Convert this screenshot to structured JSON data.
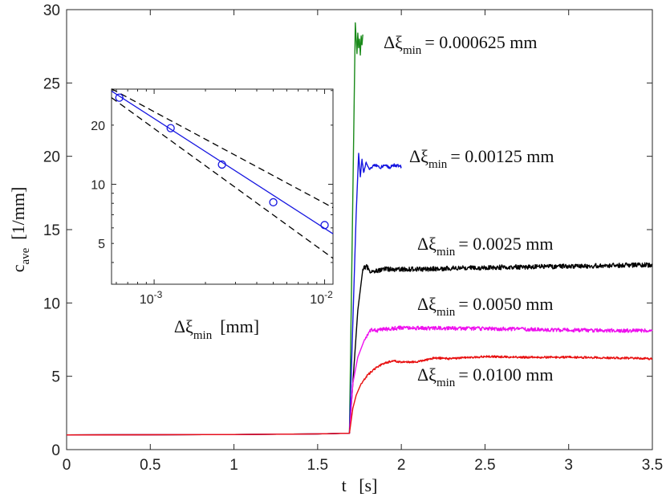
{
  "chart_data": [
    {
      "type": "line",
      "role": "main",
      "xlabel_var": "t",
      "xlabel_unit": "[s]",
      "ylabel_var": "c",
      "ylabel_sub": "ave",
      "ylabel_unit": "[1/mm]",
      "xlim": [
        0,
        3.5
      ],
      "ylim": [
        0,
        30
      ],
      "xticks": [
        0,
        0.5,
        1,
        1.5,
        2,
        2.5,
        3,
        3.5
      ],
      "xtick_labels": [
        "0",
        "0.5",
        "1",
        "1.5",
        "2",
        "2.5",
        "3",
        "3.5"
      ],
      "yticks": [
        0,
        5,
        10,
        15,
        20,
        25,
        30
      ],
      "ytick_labels": [
        "0",
        "5",
        "10",
        "15",
        "20",
        "25",
        "30"
      ],
      "series": [
        {
          "name": "Δξmin = 0.000625 mm",
          "label_prefix": "Δξ",
          "label_sub": "min",
          "label_value": "= 0.000625 mm",
          "color": "#1a8a1a",
          "points": [
            [
              0,
              1
            ],
            [
              1.0,
              1.03
            ],
            [
              1.5,
              1.07
            ],
            [
              1.69,
              1.12
            ],
            [
              1.725,
              29.1
            ],
            [
              1.735,
              27.0
            ],
            [
              1.74,
              28.4
            ],
            [
              1.745,
              27.4
            ],
            [
              1.75,
              28.0
            ],
            [
              1.755,
              26.9
            ],
            [
              1.76,
              28.2
            ],
            [
              1.765,
              27.6
            ],
            [
              1.77,
              28.3
            ]
          ],
          "noise": 0
        },
        {
          "name": "Δξmin = 0.00125 mm",
          "label_prefix": "Δξ",
          "label_sub": "min",
          "label_value": "= 0.00125 mm",
          "color": "#1515e0",
          "points": [
            [
              0,
              1
            ],
            [
              1.0,
              1.03
            ],
            [
              1.5,
              1.07
            ],
            [
              1.69,
              1.12
            ],
            [
              1.73,
              16.0
            ],
            [
              1.745,
              20.2
            ],
            [
              1.755,
              18.6
            ],
            [
              1.765,
              19.8
            ],
            [
              1.775,
              18.9
            ],
            [
              1.79,
              19.6
            ],
            [
              1.81,
              19.1
            ],
            [
              1.84,
              19.45
            ],
            [
              1.87,
              19.2
            ],
            [
              1.9,
              19.4
            ],
            [
              1.93,
              19.25
            ],
            [
              1.96,
              19.4
            ],
            [
              2.0,
              19.3
            ]
          ],
          "noise": 0.1
        },
        {
          "name": "Δξmin = 0.0025 mm",
          "label_prefix": "Δξ",
          "label_sub": "min",
          "label_value": "= 0.0025 mm",
          "color": "#000000",
          "points": [
            [
              0,
              1
            ],
            [
              1.0,
              1.03
            ],
            [
              1.5,
              1.07
            ],
            [
              1.69,
              1.12
            ],
            [
              1.74,
              9.5
            ],
            [
              1.77,
              12.3
            ],
            [
              1.79,
              12.5
            ],
            [
              1.82,
              12.1
            ],
            [
              1.9,
              12.3
            ],
            [
              2.1,
              12.3
            ],
            [
              2.4,
              12.4
            ],
            [
              2.7,
              12.45
            ],
            [
              3.0,
              12.5
            ],
            [
              3.2,
              12.55
            ],
            [
              3.5,
              12.6
            ]
          ],
          "noise": 0.16
        },
        {
          "name": "Δξmin = 0.0050 mm",
          "label_prefix": "Δξ",
          "label_sub": "min",
          "label_value": "= 0.0050 mm",
          "color": "#ee11ee",
          "points": [
            [
              0,
              1
            ],
            [
              1.0,
              1.03
            ],
            [
              1.5,
              1.07
            ],
            [
              1.69,
              1.12
            ],
            [
              1.71,
              4.5
            ],
            [
              1.74,
              6.3
            ],
            [
              1.78,
              7.5
            ],
            [
              1.82,
              8.2
            ],
            [
              1.85,
              8.1
            ],
            [
              1.88,
              8.2
            ],
            [
              2.0,
              8.3
            ],
            [
              2.5,
              8.25
            ],
            [
              3.0,
              8.15
            ],
            [
              3.5,
              8.1
            ]
          ],
          "noise": 0.13
        },
        {
          "name": "Δξmin = 0.0100 mm",
          "label_prefix": "Δξ",
          "label_sub": "min",
          "label_value": "= 0.0100 mm",
          "color": "#e81010",
          "points": [
            [
              0,
              1
            ],
            [
              1.0,
              1.03
            ],
            [
              1.5,
              1.07
            ],
            [
              1.69,
              1.12
            ],
            [
              1.71,
              2.8
            ],
            [
              1.73,
              3.7
            ],
            [
              1.76,
              4.5
            ],
            [
              1.8,
              5.1
            ],
            [
              1.85,
              5.6
            ],
            [
              1.9,
              5.9
            ],
            [
              1.95,
              6.05
            ],
            [
              2.0,
              5.95
            ],
            [
              2.1,
              6.0
            ],
            [
              2.2,
              6.25
            ],
            [
              2.3,
              6.2
            ],
            [
              2.5,
              6.35
            ],
            [
              2.7,
              6.3
            ],
            [
              3.0,
              6.3
            ],
            [
              3.3,
              6.25
            ],
            [
              3.5,
              6.2
            ]
          ],
          "noise": 0.07
        }
      ]
    },
    {
      "type": "scatter",
      "role": "inset",
      "xscale": "log",
      "yscale": "log",
      "xlabel_var": "Δξ",
      "xlabel_sub": "min",
      "xlabel_unit": "[mm]",
      "xlim": [
        0.0005625,
        0.0112
      ],
      "ylim": [
        3.1,
        30.5
      ],
      "xtick_base": "10",
      "xticks": [
        0.001,
        0.01
      ],
      "xtick_exponents": [
        "-3",
        "-2"
      ],
      "yticks": [
        5,
        10,
        20
      ],
      "ytick_labels": [
        "5",
        "10",
        "20"
      ],
      "points": {
        "x": [
          0.000625,
          0.00125,
          0.0025,
          0.005,
          0.01
        ],
        "y": [
          27.6,
          19.3,
          12.6,
          8.1,
          6.2
        ],
        "color": "#1515e0"
      },
      "fit_line": {
        "x": [
          0.0005625,
          0.0112
        ],
        "y": [
          29.8,
          5.6
        ],
        "color": "#1515e0"
      },
      "bound_upper": {
        "x": [
          0.0005625,
          0.0112
        ],
        "y": [
          30.6,
          7.6
        ],
        "color": "#000000"
      },
      "bound_lower": {
        "x": [
          0.0005625,
          0.0112
        ],
        "y": [
          27.6,
          4.2
        ],
        "color": "#000000"
      }
    }
  ]
}
